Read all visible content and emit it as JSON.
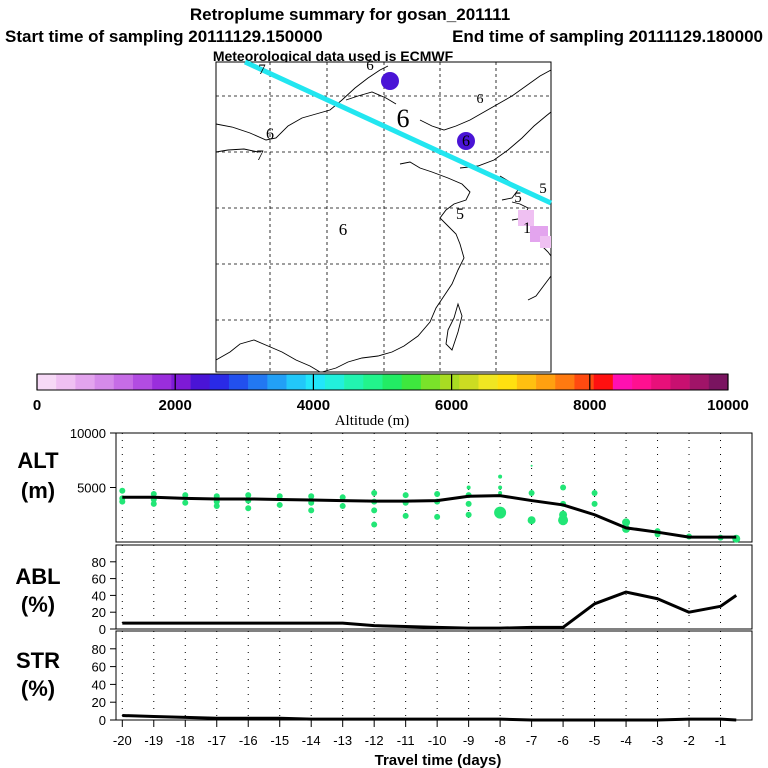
{
  "header": {
    "title": "Retroplume summary for gosan_201111",
    "start": "Start time of sampling 20111129.150000",
    "end": "End time of sampling 20111129.180000",
    "met": "Meteorological data used is ECMWF"
  },
  "colorbar": {
    "colors": [
      "#f6d9f6",
      "#efc0f2",
      "#e3a4ee",
      "#d58aea",
      "#c66ce6",
      "#b24ce2",
      "#9a2edc",
      "#7e1ad6",
      "#4a14d6",
      "#2a2ae6",
      "#2250ee",
      "#2278f2",
      "#22a0f6",
      "#22c8fa",
      "#22e6fa",
      "#22f0dc",
      "#22f4b0",
      "#22f48c",
      "#22ec64",
      "#3ee83e",
      "#7ae22a",
      "#a8dc22",
      "#ccdc22",
      "#f0e622",
      "#ffe010",
      "#ffc010",
      "#ffa010",
      "#ff7a10",
      "#ff4a10",
      "#ff1010",
      "#ff10b0",
      "#ff1090",
      "#e8107a",
      "#c81070",
      "#a01468",
      "#7a1460"
    ],
    "tick_labels": [
      "0",
      "2000",
      "4000",
      "6000",
      "8000",
      "10000"
    ],
    "title": "Altitude (m)"
  },
  "map": {
    "plume_color": "#22e6f0",
    "markers": [
      {
        "label": "7",
        "color": "#22e6fa"
      },
      {
        "label": "6",
        "color": "#7ae22a"
      },
      {
        "label": "6",
        "color": "#22e6fa"
      },
      {
        "label": "7",
        "color": "#22e6fa"
      },
      {
        "label": "6",
        "color": "#2250ee"
      },
      {
        "label": "6",
        "color": "#000000"
      },
      {
        "label": "6",
        "color": "#4a14d6"
      },
      {
        "label": "5",
        "color": "#22e6fa"
      },
      {
        "label": "5",
        "color": "#22e6fa"
      },
      {
        "label": "6",
        "color": "#000000"
      },
      {
        "label": "5",
        "color": "#22e6fa"
      },
      {
        "label": "1",
        "color": "#000000"
      }
    ]
  },
  "chart_data": [
    {
      "type": "line",
      "name": "ALT",
      "ylabel_line1": "ALT",
      "ylabel_line2": "(m)",
      "ylim": [
        0,
        10000
      ],
      "yticks": [
        "10000",
        "5000"
      ],
      "x": [
        -20,
        -19,
        -18,
        -17,
        -16,
        -15,
        -14,
        -13,
        -12,
        -11,
        -10,
        -9,
        -8,
        -7,
        -6,
        -5,
        -4,
        -3,
        -2,
        -1,
        -0.5
      ],
      "values": [
        4100,
        4100,
        4000,
        3950,
        3950,
        3900,
        3850,
        3800,
        3750,
        3750,
        3800,
        4200,
        4250,
        3800,
        3400,
        2500,
        1300,
        900,
        450,
        450,
        450
      ],
      "scatter": {
        "color": "#22e676",
        "x": [
          -20,
          -20,
          -20,
          -19,
          -19,
          -19,
          -18,
          -18,
          -17,
          -17,
          -17,
          -16,
          -16,
          -16,
          -15,
          -15,
          -14,
          -14,
          -14,
          -13,
          -13,
          -12,
          -12,
          -12,
          -12,
          -11,
          -11,
          -11,
          -10,
          -10,
          -10,
          -9,
          -9,
          -9,
          -9,
          -8,
          -8,
          -8,
          -8,
          -7,
          -7,
          -7,
          -6,
          -6,
          -6,
          -6,
          -5,
          -5,
          -4,
          -4,
          -3,
          -3,
          -2,
          -1,
          -0.5
        ],
        "y": [
          4700,
          4000,
          3700,
          4400,
          3900,
          3500,
          4300,
          3600,
          4200,
          3700,
          3300,
          4300,
          3800,
          3100,
          4200,
          3400,
          4200,
          3600,
          2900,
          4100,
          3300,
          4500,
          3700,
          2900,
          1600,
          4300,
          3600,
          2400,
          4400,
          3700,
          2300,
          5000,
          4300,
          3500,
          2500,
          6000,
          5000,
          4500,
          2700,
          7000,
          4500,
          2000,
          5000,
          3500,
          2500,
          2000,
          4500,
          3500,
          1800,
          1200,
          1000,
          700,
          500,
          400,
          300
        ],
        "s": [
          3,
          3,
          3,
          3,
          3,
          3,
          3,
          3,
          3,
          3,
          3,
          3,
          3,
          3,
          3,
          3,
          3,
          3,
          3,
          3,
          3,
          3,
          3,
          3,
          3,
          3,
          3,
          3,
          3,
          3,
          3,
          2,
          3,
          3,
          3,
          2,
          2,
          2,
          6,
          1,
          3,
          4,
          3,
          3,
          4,
          5,
          3,
          3,
          4,
          4,
          3,
          3,
          3,
          3,
          4
        ]
      }
    },
    {
      "type": "line",
      "name": "ABL",
      "ylabel_line1": "ABL",
      "ylabel_line2": "(%)",
      "ylim": [
        0,
        100
      ],
      "yticks": [
        "80",
        "60",
        "40",
        "20",
        "0"
      ],
      "x": [
        -20,
        -19,
        -18,
        -17,
        -16,
        -15,
        -14,
        -13,
        -12,
        -11,
        -10,
        -9,
        -8,
        -7,
        -6,
        -5,
        -4,
        -3,
        -2,
        -1,
        -0.5
      ],
      "values": [
        7,
        7,
        7,
        7,
        7,
        7,
        7,
        7,
        4,
        3,
        2,
        1,
        1,
        2,
        2,
        30,
        44,
        36,
        20,
        27,
        40
      ]
    },
    {
      "type": "line",
      "name": "STR",
      "ylabel_line1": "STR",
      "ylabel_line2": "(%)",
      "ylim": [
        0,
        100
      ],
      "yticks": [
        "80",
        "60",
        "40",
        "20",
        "0"
      ],
      "x": [
        -20,
        -19,
        -18,
        -17,
        -16,
        -15,
        -14,
        -13,
        -12,
        -11,
        -10,
        -9,
        -8,
        -7,
        -6,
        -5,
        -4,
        -3,
        -2,
        -1,
        -0.5
      ],
      "values": [
        5,
        4,
        3,
        2,
        2,
        2,
        1,
        1,
        1,
        1,
        1,
        1,
        1,
        0,
        0,
        0,
        0,
        0,
        1,
        1,
        0
      ]
    }
  ],
  "xaxis": {
    "ticks": [
      "-20",
      "-19",
      "-18",
      "-17",
      "-16",
      "-15",
      "-14",
      "-13",
      "-12",
      "-11",
      "-10",
      "-9",
      "-8",
      "-7",
      "-6",
      "-5",
      "-4",
      "-3",
      "-2",
      "-1"
    ],
    "tick_values": [
      -20,
      -19,
      -18,
      -17,
      -16,
      -15,
      -14,
      -13,
      -12,
      -11,
      -10,
      -9,
      -8,
      -7,
      -6,
      -5,
      -4,
      -3,
      -2,
      -1
    ],
    "label": "Travel time (days)"
  }
}
